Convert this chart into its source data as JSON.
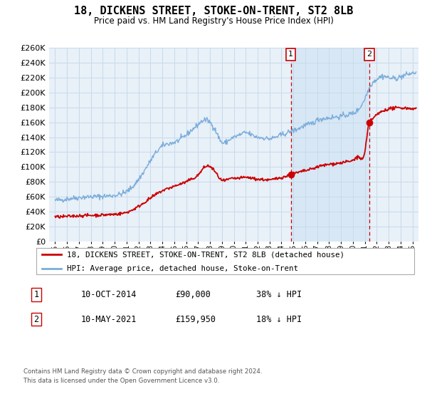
{
  "title": "18, DICKENS STREET, STOKE-ON-TRENT, ST2 8LB",
  "subtitle": "Price paid vs. HM Land Registry's House Price Index (HPI)",
  "hpi_color": "#7aaddb",
  "price_color": "#cc0000",
  "marker_color": "#cc0000",
  "vline_color": "#cc0000",
  "grid_color": "#c8daea",
  "background_color": "#e8f0f8",
  "shade_color": "#d0e4f4",
  "ylim": [
    0,
    260000
  ],
  "yticks": [
    0,
    20000,
    40000,
    60000,
    80000,
    100000,
    120000,
    140000,
    160000,
    180000,
    200000,
    220000,
    240000,
    260000
  ],
  "xlim_start": 1994.5,
  "xlim_end": 2025.5,
  "sale1_x": 2014.78,
  "sale1_price": 90000,
  "sale1_label": "1",
  "sale2_x": 2021.37,
  "sale2_price": 159950,
  "sale2_label": "2",
  "legend_entry1": "18, DICKENS STREET, STOKE-ON-TRENT, ST2 8LB (detached house)",
  "legend_entry2": "HPI: Average price, detached house, Stoke-on-Trent",
  "table_row1": [
    "1",
    "10-OCT-2014",
    "£90,000",
    "38% ↓ HPI"
  ],
  "table_row2": [
    "2",
    "10-MAY-2021",
    "£159,950",
    "18% ↓ HPI"
  ],
  "footer1": "Contains HM Land Registry data © Crown copyright and database right 2024.",
  "footer2": "This data is licensed under the Open Government Licence v3.0."
}
